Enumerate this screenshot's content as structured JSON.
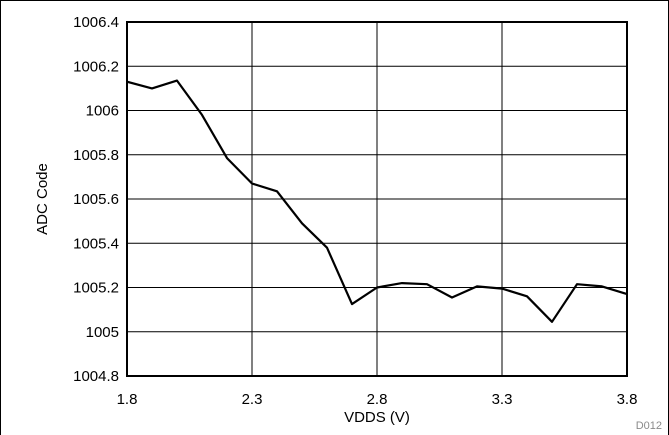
{
  "chart_data": {
    "type": "line",
    "title": "",
    "xlabel": "VDDS (V)",
    "ylabel": "ADC Code",
    "xlim": [
      1.8,
      3.8
    ],
    "ylim": [
      1004.8,
      1006.4
    ],
    "x_ticks": [
      "1.8",
      "2.3",
      "2.8",
      "3.3",
      "3.8"
    ],
    "y_ticks": [
      "1004.8",
      "1005",
      "1005.2",
      "1005.4",
      "1005.6",
      "1005.8",
      "1006",
      "1006.2",
      "1006.4"
    ],
    "grid": true,
    "series": [
      {
        "x": [
          1.8,
          1.9,
          2.0,
          2.1,
          2.2,
          2.3,
          2.4,
          2.5,
          2.6,
          2.7,
          2.8,
          2.9,
          3.0,
          3.1,
          3.2,
          3.3,
          3.4,
          3.5,
          3.6,
          3.7,
          3.8
        ],
        "y": [
          1006.13,
          1006.1,
          1006.135,
          1005.98,
          1005.785,
          1005.67,
          1005.635,
          1005.49,
          1005.38,
          1005.125,
          1005.2,
          1005.22,
          1005.215,
          1005.155,
          1005.205,
          1005.195,
          1005.16,
          1005.045,
          1005.215,
          1005.205,
          1005.17
        ]
      }
    ]
  },
  "footnote": "D012"
}
